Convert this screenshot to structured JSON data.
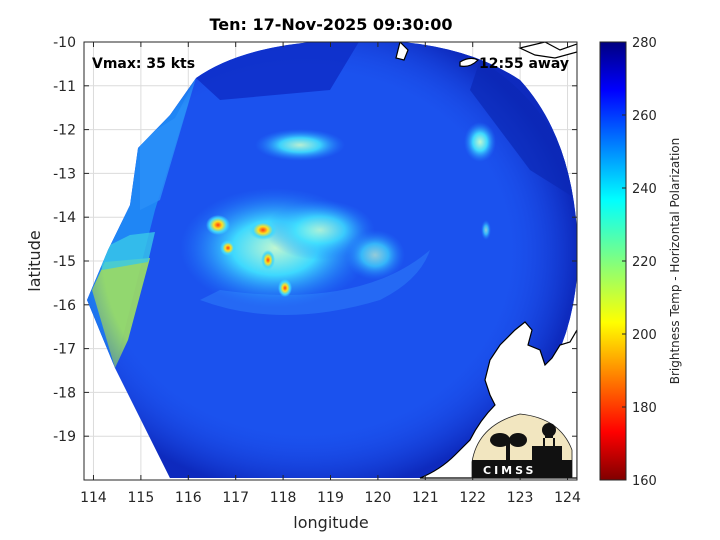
{
  "title": "Ten: 17-Nov-2025 09:30:00",
  "annotations": {
    "vmax": "Vmax: 35 kts",
    "distance": "12:55 away"
  },
  "logo_text": "CIMSS",
  "x_axis": {
    "label": "longitude",
    "range": [
      113.8,
      124.2
    ],
    "ticks": [
      "114",
      "115",
      "116",
      "117",
      "118",
      "119",
      "120",
      "121",
      "122",
      "123",
      "124"
    ]
  },
  "y_axis": {
    "label": "latitude",
    "range": [
      -20.0,
      -10.0
    ],
    "ticks": [
      "-10",
      "-11",
      "-12",
      "-13",
      "-14",
      "-15",
      "-16",
      "-17",
      "-18",
      "-19"
    ]
  },
  "colorbar": {
    "label": "Brightness Temp - Horizontal Polarization",
    "range": [
      160,
      280
    ],
    "ticks": [
      "280",
      "260",
      "240",
      "220",
      "200",
      "180",
      "160"
    ]
  },
  "colors": {
    "background_field": "#1a4ff0",
    "outer_swath": "#0a2fd8",
    "cold_core": "#c81010"
  }
}
